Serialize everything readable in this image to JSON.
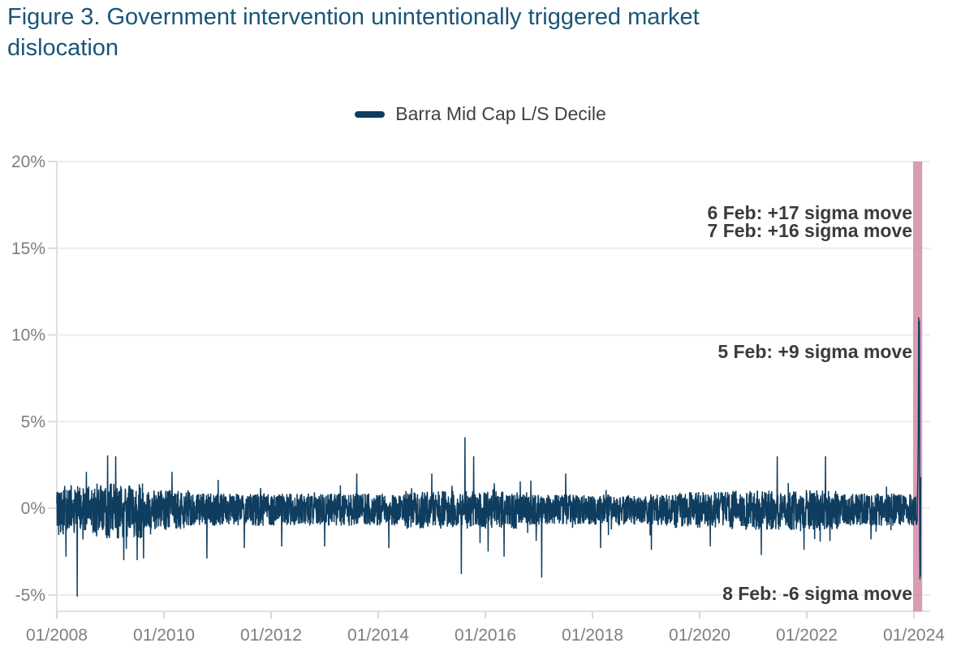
{
  "title": {
    "line1": "Figure 3. Government intervention unintentionally triggered market",
    "line2": "dislocation",
    "full_text": "Figure 3. Government intervention unintentionally triggered market dislocation",
    "color": "#1a5678"
  },
  "legend": {
    "label": "Barra Mid Cap L/S Decile",
    "marker_color": "#0e3d5f"
  },
  "chart_data": {
    "type": "line",
    "title": "Figure 3. Government intervention unintentionally triggered market dislocation",
    "series": [
      {
        "name": "Barra Mid Cap L/S Decile",
        "color": "#0e3d5f"
      }
    ],
    "x_axis": {
      "ticks": [
        "01/2008",
        "01/2010",
        "01/2012",
        "01/2014",
        "01/2016",
        "01/2018",
        "01/2020",
        "01/2022",
        "01/2024"
      ],
      "tick_years": [
        2008,
        2010,
        2012,
        2014,
        2016,
        2018,
        2020,
        2022,
        2024
      ],
      "start_year": 2008.0,
      "end_year": 2024.15,
      "label_color": "#7e7e7e"
    },
    "y_axis": {
      "ticks": [
        "20%",
        "15%",
        "10%",
        "5%",
        "0%",
        "-5%"
      ],
      "tick_values": [
        20,
        15,
        10,
        5,
        0,
        -5
      ],
      "min": -6,
      "max": 20,
      "unit": "%",
      "label_color": "#7e7e7e"
    },
    "grid": {
      "horizontal": true,
      "vertical": false,
      "color": "#ececec",
      "axis_color": "#e0e0e0"
    },
    "highlight_band": {
      "x_start_year": 2023.985,
      "x_end_year": 2024.155,
      "color": "#d18ca4",
      "opacity": 0.85
    },
    "annotations": [
      {
        "text": "6 Feb: +17 sigma move",
        "sigma": 17,
        "y_pct": 17.05
      },
      {
        "text": "7 Feb: +16 sigma move",
        "sigma": 16,
        "y_pct": 16.0
      },
      {
        "text": "5 Feb: +9 sigma move",
        "sigma": 9,
        "y_pct": 9.05
      },
      {
        "text": "8 Feb: -6 sigma move",
        "sigma": -6,
        "y_pct": -4.9
      }
    ],
    "key_points_pct": [
      {
        "t": 2008.17,
        "v": -2.8
      },
      {
        "t": 2008.38,
        "v": -5.1
      },
      {
        "t": 2008.55,
        "v": 2.1
      },
      {
        "t": 2008.95,
        "v": 3.05
      },
      {
        "t": 2009.1,
        "v": 3.0
      },
      {
        "t": 2009.25,
        "v": -3.0
      },
      {
        "t": 2009.5,
        "v": -3.0
      },
      {
        "t": 2009.62,
        "v": -2.9
      },
      {
        "t": 2010.15,
        "v": 2.1
      },
      {
        "t": 2010.8,
        "v": -2.9
      },
      {
        "t": 2011.5,
        "v": -2.3
      },
      {
        "t": 2012.2,
        "v": -2.2
      },
      {
        "t": 2013.0,
        "v": -2.2
      },
      {
        "t": 2013.6,
        "v": 2.0
      },
      {
        "t": 2014.2,
        "v": -2.3
      },
      {
        "t": 2015.0,
        "v": 2.0
      },
      {
        "t": 2015.55,
        "v": -3.8
      },
      {
        "t": 2015.62,
        "v": 4.1
      },
      {
        "t": 2015.78,
        "v": 3.0
      },
      {
        "t": 2016.05,
        "v": -2.5
      },
      {
        "t": 2016.35,
        "v": -2.8
      },
      {
        "t": 2017.05,
        "v": -4.0
      },
      {
        "t": 2017.5,
        "v": 2.0
      },
      {
        "t": 2018.15,
        "v": -2.3
      },
      {
        "t": 2019.1,
        "v": -2.4
      },
      {
        "t": 2020.2,
        "v": -2.2
      },
      {
        "t": 2021.15,
        "v": -2.7
      },
      {
        "t": 2021.45,
        "v": 3.0
      },
      {
        "t": 2021.95,
        "v": -2.4
      },
      {
        "t": 2022.35,
        "v": 3.0
      },
      {
        "t": 2023.2,
        "v": -1.8
      }
    ],
    "feb_2024_points_pct": [
      [
        2024.075,
        2.2
      ],
      [
        2024.082,
        4.2
      ],
      [
        2024.09,
        11.0
      ],
      [
        2024.096,
        9.0
      ],
      [
        2024.102,
        10.8
      ],
      [
        2024.108,
        -2.0
      ],
      [
        2024.113,
        -4.1
      ],
      [
        2024.118,
        -1.2
      ],
      [
        2024.122,
        -3.9
      ],
      [
        2024.126,
        1.8
      ]
    ],
    "noise": {
      "seed": 42,
      "points_per_year": 252,
      "spike_prob": 0.03,
      "eras": [
        {
          "from": 2008.0,
          "to": 2008.7,
          "amp": 1.3
        },
        {
          "from": 2008.7,
          "to": 2009.6,
          "amp": 1.45
        },
        {
          "from": 2009.6,
          "to": 2010.5,
          "amp": 1.05
        },
        {
          "from": 2010.5,
          "to": 2014.5,
          "amp": 0.85
        },
        {
          "from": 2014.5,
          "to": 2016.6,
          "amp": 1.0
        },
        {
          "from": 2016.6,
          "to": 2019.5,
          "amp": 0.8
        },
        {
          "from": 2019.5,
          "to": 2020.6,
          "amp": 0.95
        },
        {
          "from": 2020.6,
          "to": 2022.6,
          "amp": 1.05
        },
        {
          "from": 2022.6,
          "to": 2024.06,
          "amp": 0.85
        }
      ]
    }
  }
}
